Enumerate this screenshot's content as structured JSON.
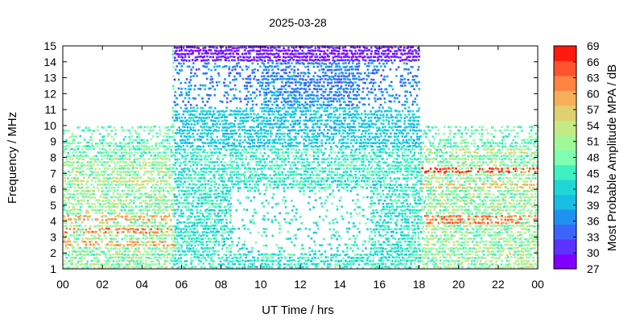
{
  "chart_data": {
    "type": "heatmap",
    "title": "2025-03-28",
    "xlabel": "UT Time / hrs",
    "ylabel": "Frequency / MHz",
    "xlim": [
      0,
      24
    ],
    "ylim": [
      1,
      15
    ],
    "x_ticks": [
      "00",
      "02",
      "04",
      "06",
      "08",
      "10",
      "12",
      "14",
      "16",
      "18",
      "20",
      "22",
      "00"
    ],
    "y_ticks": [
      "1",
      "2",
      "3",
      "4",
      "5",
      "6",
      "7",
      "8",
      "9",
      "10",
      "11",
      "12",
      "13",
      "14",
      "15"
    ],
    "colorbar": {
      "label": "Most Probable Amplitude MPA / dB",
      "range": [
        27,
        69
      ],
      "ticks": [
        "27",
        "30",
        "33",
        "36",
        "39",
        "42",
        "45",
        "48",
        "51",
        "54",
        "57",
        "60",
        "63",
        "66",
        "69"
      ],
      "colors": [
        "#7f00ff",
        "#5b32fe",
        "#3c64f9",
        "#1e92ef",
        "#17bde2",
        "#1ed7d5",
        "#3ff0c3",
        "#7ffdb0",
        "#a2f79b",
        "#c4e985",
        "#e0cf6f",
        "#f6af59",
        "#ff8443",
        "#ff532d",
        "#ff1a0f"
      ]
    },
    "coverage": {
      "daytime_hours": [
        5.5,
        18
      ],
      "daytime_freq_max": 15,
      "nighttime_freq_max": 10
    },
    "bands": [
      {
        "t": [
          0,
          5.5
        ],
        "f": [
          2.2,
          2.6
        ],
        "value": 60
      },
      {
        "t": [
          0,
          5.5
        ],
        "f": [
          3.2,
          3.5
        ],
        "value": 63
      },
      {
        "t": [
          0,
          5.5
        ],
        "f": [
          4.0,
          4.4
        ],
        "value": 60
      },
      {
        "t": [
          0,
          5.5
        ],
        "f": [
          6.3,
          6.7
        ],
        "value": 54
      },
      {
        "t": [
          18,
          24
        ],
        "f": [
          3.8,
          4.3
        ],
        "value": 63
      },
      {
        "t": [
          18,
          24
        ],
        "f": [
          7.0,
          7.4
        ],
        "value": 66
      },
      {
        "t": [
          18,
          24
        ],
        "f": [
          6.0,
          6.4
        ],
        "value": 57
      },
      {
        "t": [
          18,
          24
        ],
        "f": [
          8.2,
          8.6
        ],
        "value": 54
      },
      {
        "t": [
          6,
          18
        ],
        "f": [
          7.2,
          8.0
        ],
        "value": 45
      },
      {
        "t": [
          9.5,
          14.5
        ],
        "f": [
          9.5,
          10.5
        ],
        "value": 40
      },
      {
        "t": [
          5.5,
          18
        ],
        "f": [
          14.0,
          15.0
        ],
        "value": 29
      },
      {
        "t": [
          5.5,
          18
        ],
        "f": [
          12.5,
          13.5
        ],
        "value": 35
      }
    ]
  }
}
